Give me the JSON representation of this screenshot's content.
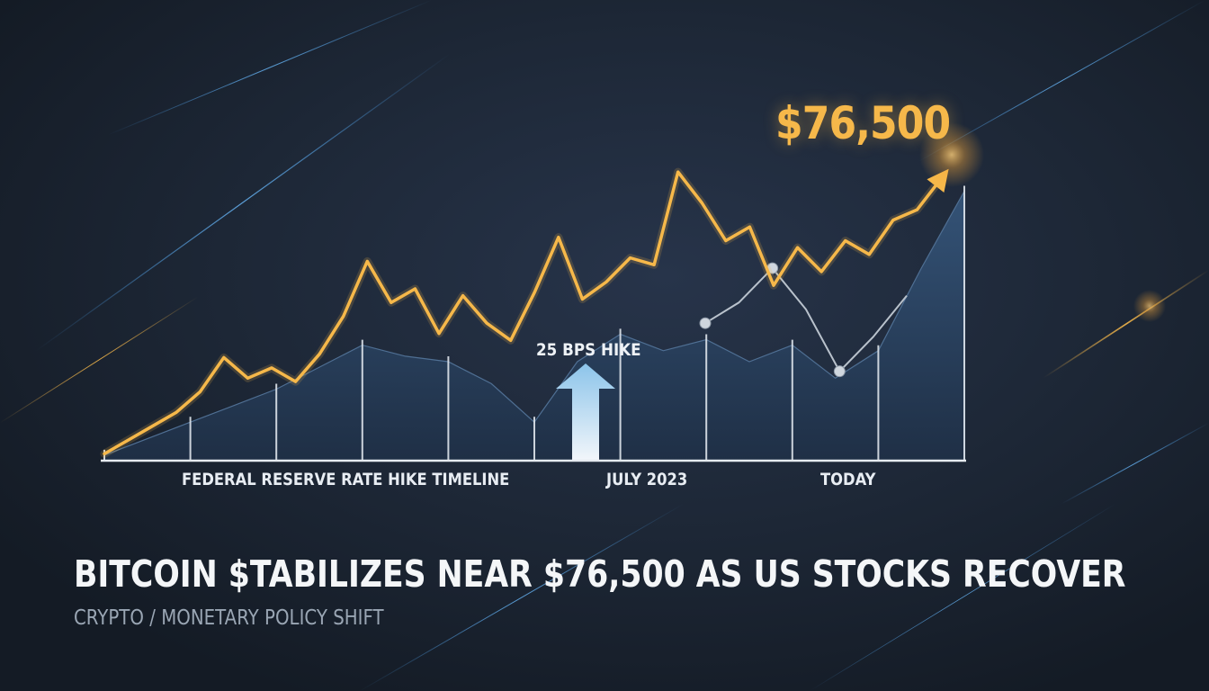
{
  "headline": "BITCOIN $TABILIZES NEAR $76,500 AS US STOCKS RECOVER",
  "subheadline": "CRYPTO / MONETARY POLICY SHIFT",
  "colors": {
    "price_line": "#f6b84a",
    "area_fill": "#2f4a66",
    "secondary_line": "#b9c2cc",
    "arrow": "#7fb8e0",
    "background": "#1b2431"
  },
  "chart_data": {
    "type": "line",
    "price_callout": "$76,500",
    "annotation": "25 BPS HIKE",
    "annotation_icon": "up-arrow-icon",
    "x_labels": [
      "FEDERAL RESERVE RATE HIKE TIMELINE",
      "JULY 2023",
      "TODAY"
    ],
    "price_series": {
      "values": [
        2,
        6,
        10,
        14,
        20,
        30,
        24,
        27,
        23,
        31,
        42,
        58,
        46,
        50,
        37,
        48,
        40,
        35,
        49,
        65,
        47,
        52,
        59,
        57,
        84,
        75,
        64,
        68,
        51,
        62,
        55,
        64,
        60,
        70,
        73,
        82
      ],
      "end_arrow": true
    },
    "area_series": {
      "values": [
        2,
        8,
        14,
        20,
        26,
        34,
        42,
        38,
        36,
        28,
        14,
        36,
        46,
        40,
        44,
        36,
        42,
        30,
        40,
        70,
        98
      ]
    },
    "secondary_series": {
      "values": [
        40,
        46,
        56,
        44,
        26,
        36,
        48
      ]
    },
    "ylim": [
      0,
      100
    ],
    "grid": false
  }
}
